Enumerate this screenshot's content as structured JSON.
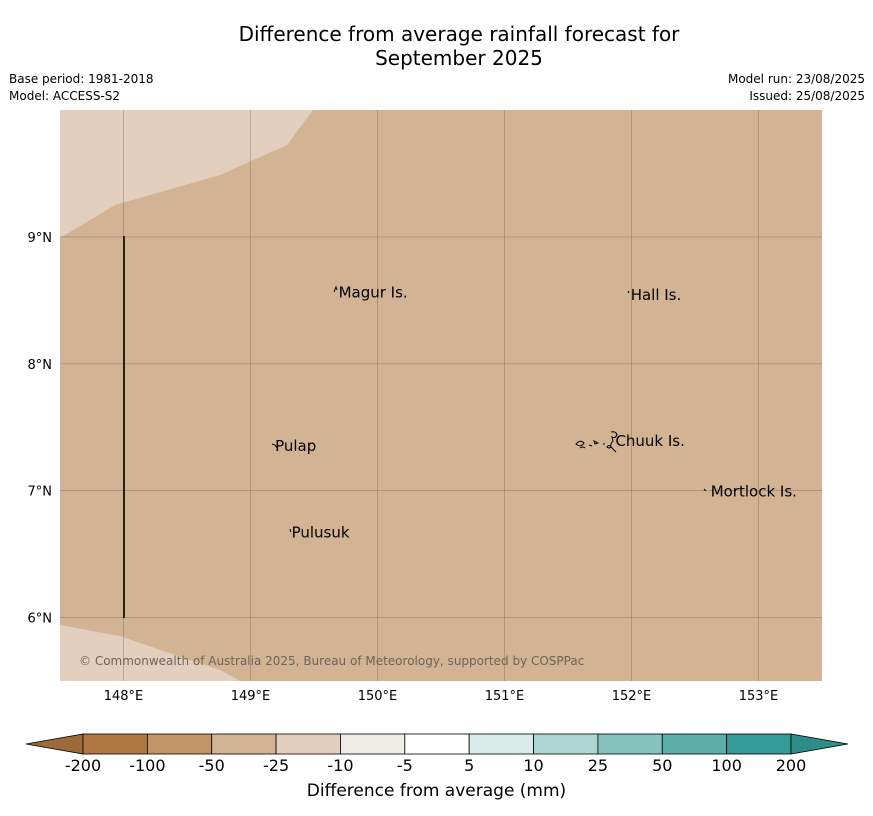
{
  "title": {
    "line1": "Difference from average rainfall forecast for",
    "line2": "September 2025"
  },
  "meta_left": {
    "base_period": "Base period: 1981-2018",
    "model": "Model: ACCESS-S2"
  },
  "meta_right": {
    "model_run": "Model run: 23/08/2025",
    "issued": "Issued: 25/08/2025"
  },
  "map": {
    "lon_range": [
      147.5,
      153.5
    ],
    "lat_range": [
      5.5,
      10.0
    ],
    "lon_ticks": [
      {
        "value": 148,
        "label": "148°E"
      },
      {
        "value": 149,
        "label": "149°E"
      },
      {
        "value": 150,
        "label": "150°E"
      },
      {
        "value": 151,
        "label": "151°E"
      },
      {
        "value": 152,
        "label": "152°E"
      },
      {
        "value": 153,
        "label": "153°E"
      }
    ],
    "lat_ticks": [
      {
        "value": 9,
        "label": "9°N"
      },
      {
        "value": 8,
        "label": "8°N"
      },
      {
        "value": 7,
        "label": "7°N"
      },
      {
        "value": 6,
        "label": "6°N"
      }
    ],
    "dominant_category": "-50 to -25 mm",
    "dominant_color": "#d2b394",
    "light_category": "-25 to -10 mm",
    "light_color": "#e2cfbd",
    "places": [
      {
        "name": "Magur Is.",
        "lon": 149.67,
        "lat": 8.57
      },
      {
        "name": "Hall Is.",
        "lon": 151.97,
        "lat": 8.55
      },
      {
        "name": "Pulap",
        "lon": 149.17,
        "lat": 7.36
      },
      {
        "name": "Chuuk Is.",
        "lon": 151.85,
        "lat": 7.4
      },
      {
        "name": "Mortlock Is.",
        "lon": 152.6,
        "lat": 7.0
      },
      {
        "name": "Pulusuk",
        "lon": 149.3,
        "lat": 6.68
      }
    ],
    "copyright": "© Commonwealth of Australia 2025, Bureau of Meteorology, supported by COSPPac"
  },
  "colorbar": {
    "label": "Difference from average (mm)",
    "ticks": [
      "-200",
      "-100",
      "-50",
      "-25",
      "-10",
      "-5",
      "5",
      "10",
      "25",
      "50",
      "100",
      "200"
    ],
    "colors": [
      "#b07841",
      "#c19467",
      "#d2b394",
      "#e2cfbd",
      "#efebe5",
      "#ffffff",
      "#d9ece9",
      "#aed7d3",
      "#86c2be",
      "#5caeab",
      "#339a97"
    ],
    "under_color": "#9c6a38",
    "over_color": "#2e8c88"
  }
}
